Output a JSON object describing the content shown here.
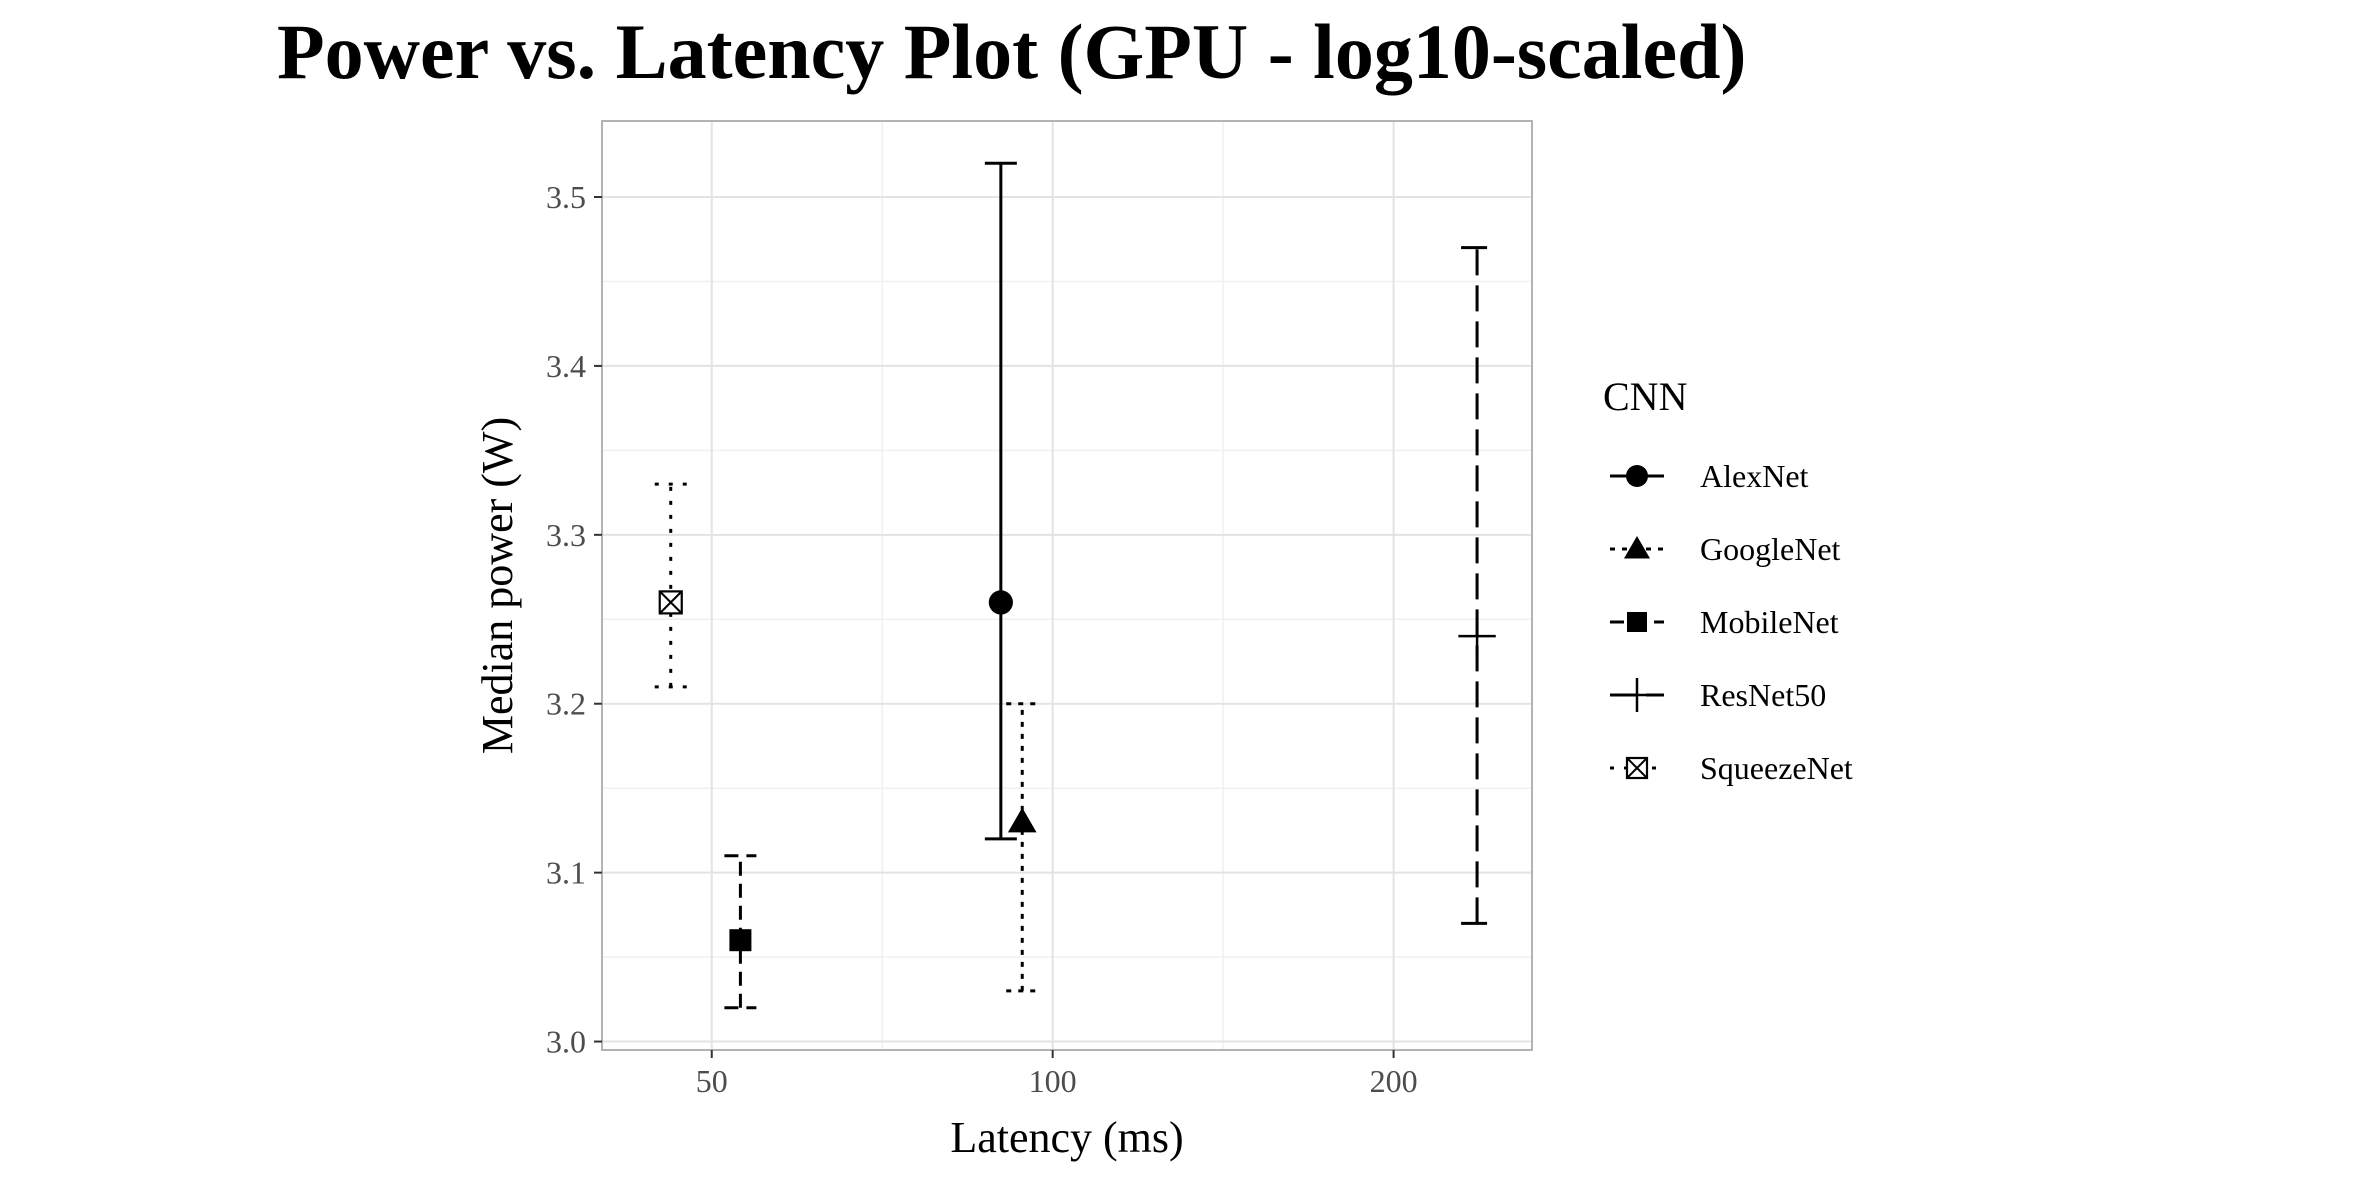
{
  "chart_data": {
    "type": "scatter",
    "title": "Power vs. Latency Plot (GPU - log10-scaled)",
    "xlabel": "Latency (ms)",
    "ylabel": "Median power (W)",
    "x_scale": "log10",
    "xlim": [
      40,
      265
    ],
    "ylim": [
      2.995,
      3.545
    ],
    "x_ticks": [
      50,
      100,
      200
    ],
    "x_tick_labels": [
      "50",
      "100",
      "200"
    ],
    "y_ticks": [
      3.0,
      3.1,
      3.2,
      3.3,
      3.4,
      3.5
    ],
    "y_tick_labels": [
      "3.0",
      "3.1",
      "3.2",
      "3.3",
      "3.4",
      "3.5"
    ],
    "grid": true,
    "legend": {
      "title": "CNN",
      "placement": "right"
    },
    "series": [
      {
        "name": "AlexNet",
        "shape": "circle",
        "line": "solid",
        "x": 90,
        "y": 3.26,
        "ymin": 3.12,
        "ymax": 3.52
      },
      {
        "name": "GoogleNet",
        "shape": "triangle",
        "line": "dotted",
        "x": 94,
        "y": 3.13,
        "ymin": 3.03,
        "ymax": 3.2
      },
      {
        "name": "MobileNet",
        "shape": "square",
        "line": "dashed",
        "x": 53,
        "y": 3.06,
        "ymin": 3.02,
        "ymax": 3.11
      },
      {
        "name": "ResNet50",
        "shape": "plus",
        "line": "longdash",
        "x": 237,
        "y": 3.24,
        "ymin": 3.07,
        "ymax": 3.47
      },
      {
        "name": "SqueezeNet",
        "shape": "square-x",
        "line": "dotted2",
        "x": 46,
        "y": 3.26,
        "ymin": 3.21,
        "ymax": 3.33
      }
    ]
  }
}
